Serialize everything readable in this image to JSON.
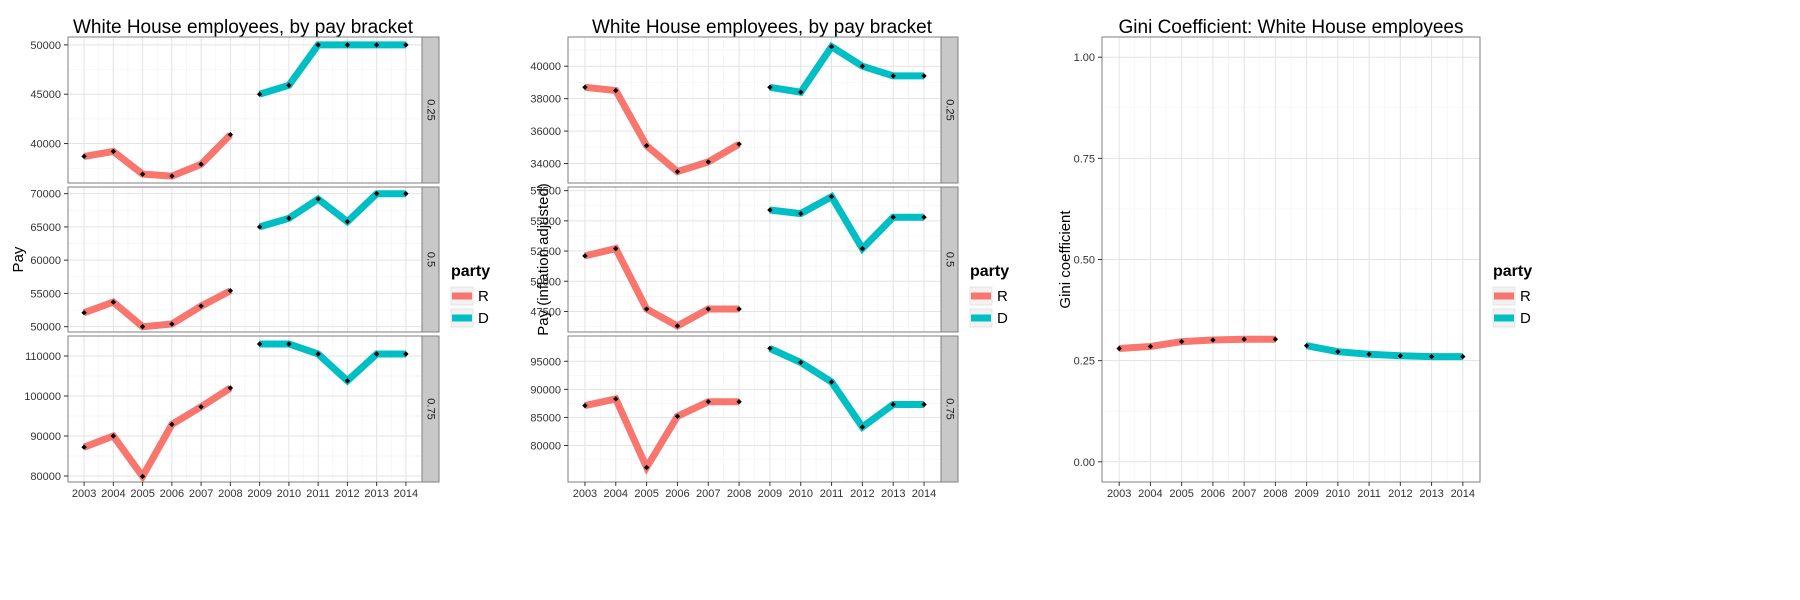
{
  "colors": {
    "R": "#F8766D",
    "D": "#00BFC4",
    "point": "#000000",
    "grid_major": "#e3e3e3",
    "grid_minor": "#f3f3f3",
    "strip_bg": "#c8c8c8",
    "border": "#7f7f7f"
  },
  "legend": {
    "title": "party",
    "entries": [
      "R",
      "D"
    ]
  },
  "chart_data": [
    {
      "type": "line",
      "title": "White House employees, by pay bracket",
      "xlabel": "",
      "ylabel": "Pay",
      "x": [
        2003,
        2004,
        2005,
        2006,
        2007,
        2008,
        2009,
        2010,
        2011,
        2012,
        2013,
        2014
      ],
      "x_ticks": [
        "2003",
        "2004",
        "2005",
        "2006",
        "2007",
        "2008",
        "2009",
        "2010",
        "2011",
        "2012",
        "2013",
        "2014"
      ],
      "grid": true,
      "legend_position": "right",
      "facets": [
        {
          "strip": "0.25",
          "ylim": [
            36000,
            50800
          ],
          "yticks": [
            40000,
            45000,
            50000
          ],
          "ytick_labels": [
            "40000",
            "45000",
            "50000"
          ],
          "series": [
            {
              "name": "R",
              "x": [
                2003,
                2004,
                2005,
                2006,
                2007,
                2008
              ],
              "values": [
                38700,
                39200,
                36900,
                36700,
                37900,
                40900
              ]
            },
            {
              "name": "D",
              "x": [
                2009,
                2010,
                2011,
                2012,
                2013,
                2014
              ],
              "values": [
                45000,
                45900,
                50000,
                50000,
                50000,
                50000
              ]
            }
          ]
        },
        {
          "strip": "0.5",
          "ylim": [
            49200,
            71000
          ],
          "yticks": [
            50000,
            55000,
            60000,
            65000,
            70000
          ],
          "ytick_labels": [
            "50000",
            "55000",
            "60000",
            "65000",
            "70000"
          ],
          "series": [
            {
              "name": "R",
              "x": [
                2003,
                2004,
                2005,
                2006,
                2007,
                2008
              ],
              "values": [
                52100,
                53700,
                50000,
                50400,
                53100,
                55400
              ]
            },
            {
              "name": "D",
              "x": [
                2009,
                2010,
                2011,
                2012,
                2013,
                2014
              ],
              "values": [
                65000,
                66300,
                69200,
                65800,
                70000,
                70000
              ]
            }
          ]
        },
        {
          "strip": "0.75",
          "ylim": [
            78500,
            115000
          ],
          "yticks": [
            80000,
            90000,
            100000,
            110000
          ],
          "ytick_labels": [
            "80000",
            "90000",
            "100000",
            "110000"
          ],
          "series": [
            {
              "name": "R",
              "x": [
                2003,
                2004,
                2005,
                2006,
                2007,
                2008
              ],
              "values": [
                87200,
                90000,
                79900,
                92900,
                97300,
                102000
              ]
            },
            {
              "name": "D",
              "x": [
                2009,
                2010,
                2011,
                2012,
                2013,
                2014
              ],
              "values": [
                113000,
                113000,
                110500,
                103800,
                110500,
                110500
              ]
            }
          ]
        }
      ]
    },
    {
      "type": "line",
      "title": "White House employees, by pay bracket",
      "xlabel": "",
      "ylabel": "Pay (inflation adjusted)",
      "x": [
        2003,
        2004,
        2005,
        2006,
        2007,
        2008,
        2009,
        2010,
        2011,
        2012,
        2013,
        2014
      ],
      "x_ticks": [
        "2003",
        "2004",
        "2005",
        "2006",
        "2007",
        "2008",
        "2009",
        "2010",
        "2011",
        "2012",
        "2013",
        "2014"
      ],
      "grid": true,
      "legend_position": "right",
      "facets": [
        {
          "strip": "0.25",
          "ylim": [
            32800,
            41800
          ],
          "yticks": [
            34000,
            36000,
            38000,
            40000
          ],
          "ytick_labels": [
            "34000",
            "36000",
            "38000",
            "40000"
          ],
          "series": [
            {
              "name": "R",
              "x": [
                2003,
                2004,
                2005,
                2006,
                2007,
                2008
              ],
              "values": [
                38700,
                38500,
                35100,
                33500,
                34100,
                35200
              ]
            },
            {
              "name": "D",
              "x": [
                2009,
                2010,
                2011,
                2012,
                2013,
                2014
              ],
              "values": [
                38700,
                38400,
                41200,
                40000,
                39400,
                39400
              ]
            }
          ]
        },
        {
          "strip": "0.5",
          "ylim": [
            45800,
            57800
          ],
          "yticks": [
            47500,
            50000,
            52500,
            55000,
            57500
          ],
          "ytick_labels": [
            "47500",
            "50000",
            "52500",
            "55000",
            "57500"
          ],
          "series": [
            {
              "name": "R",
              "x": [
                2003,
                2004,
                2005,
                2006,
                2007,
                2008
              ],
              "values": [
                52100,
                52700,
                47700,
                46300,
                47700,
                47700
              ]
            },
            {
              "name": "D",
              "x": [
                2009,
                2010,
                2011,
                2012,
                2013,
                2014
              ],
              "values": [
                55900,
                55600,
                57000,
                52700,
                55300,
                55300
              ]
            }
          ]
        },
        {
          "strip": "0.75",
          "ylim": [
            73500,
            99500
          ],
          "yticks": [
            80000,
            85000,
            90000,
            95000
          ],
          "ytick_labels": [
            "80000",
            "85000",
            "90000",
            "95000"
          ],
          "series": [
            {
              "name": "R",
              "x": [
                2003,
                2004,
                2005,
                2006,
                2007,
                2008
              ],
              "values": [
                87100,
                88300,
                76100,
                85200,
                87800,
                87800
              ]
            },
            {
              "name": "D",
              "x": [
                2009,
                2010,
                2011,
                2012,
                2013,
                2014
              ],
              "values": [
                97300,
                94800,
                91300,
                83300,
                87300,
                87300
              ]
            }
          ]
        }
      ]
    },
    {
      "type": "line",
      "title": "Gini Coefficient: White House employees",
      "xlabel": "",
      "ylabel": "Gini coefficient",
      "x": [
        2003,
        2004,
        2005,
        2006,
        2007,
        2008,
        2009,
        2010,
        2011,
        2012,
        2013,
        2014
      ],
      "x_ticks": [
        "2003",
        "2004",
        "2005",
        "2006",
        "2007",
        "2008",
        "2009",
        "2010",
        "2011",
        "2012",
        "2013",
        "2014"
      ],
      "grid": true,
      "legend_position": "right",
      "facets": [
        {
          "strip": "",
          "ylim": [
            -0.05,
            1.05
          ],
          "yticks": [
            0,
            0.25,
            0.5,
            0.75,
            1
          ],
          "ytick_labels": [
            "0.00",
            "0.25",
            "0.50",
            "0.75",
            "1.00"
          ],
          "series": [
            {
              "name": "R",
              "x": [
                2003,
                2004,
                2005,
                2006,
                2007,
                2008
              ],
              "values": [
                0.28,
                0.285,
                0.297,
                0.301,
                0.303,
                0.303
              ]
            },
            {
              "name": "D",
              "x": [
                2009,
                2010,
                2011,
                2012,
                2013,
                2014
              ],
              "values": [
                0.287,
                0.272,
                0.266,
                0.262,
                0.26,
                0.26
              ]
            }
          ]
        }
      ]
    }
  ]
}
